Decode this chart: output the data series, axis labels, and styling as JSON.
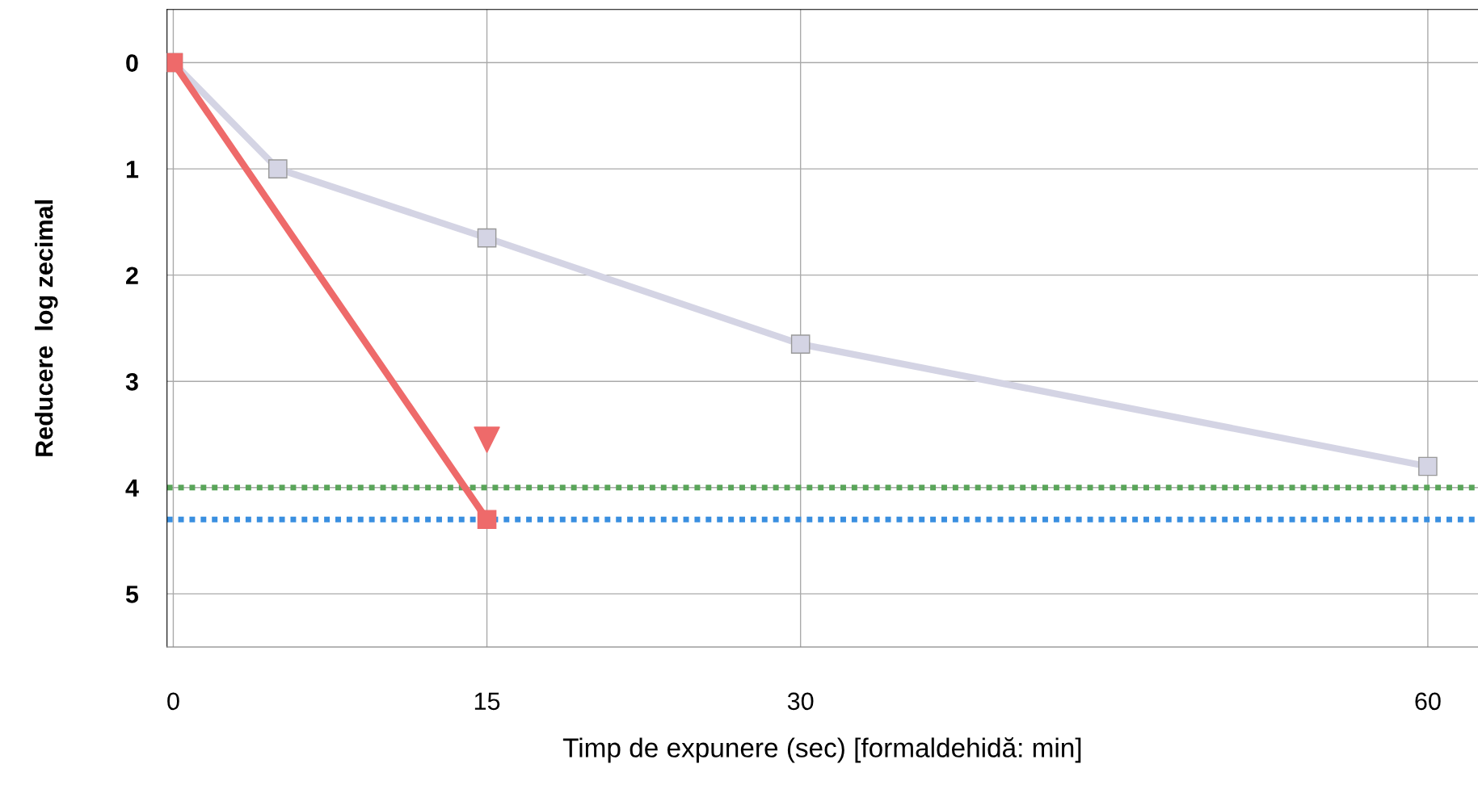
{
  "chart_data": {
    "type": "line",
    "xlabel": "Timp de expunere (sec) [formaldehidă: min]",
    "ylabel": "Reducere  log zecimal",
    "series": [
      {
        "x": [
          0,
          5,
          15,
          30,
          60
        ],
        "values": [
          0,
          1,
          1.65,
          2.65,
          3.8
        ],
        "color": "#d4d4e4",
        "marker": "square"
      },
      {
        "x": [
          0,
          15
        ],
        "values": [
          0,
          4.3
        ],
        "color": "#ee6a6a",
        "marker": "square"
      },
      {
        "type": "scatter",
        "x": [
          15
        ],
        "values": [
          3.55
        ],
        "color": "#ee6a6a",
        "marker": "triangle"
      }
    ],
    "ref_lines": [
      {
        "axis": "y",
        "value": 4.0,
        "color": "#5aa55a",
        "line_style": "dotted"
      },
      {
        "axis": "y",
        "value": 4.3,
        "color": "#3a8fe0",
        "line_style": "dotted"
      }
    ],
    "xlim": [
      -0.3,
      62.4
    ],
    "ylim": [
      5.5,
      -0.5
    ],
    "xticks": [
      0,
      15,
      30,
      60
    ],
    "yticks": [
      0,
      1,
      2,
      3,
      4,
      5
    ],
    "grid": true,
    "legend": false
  }
}
